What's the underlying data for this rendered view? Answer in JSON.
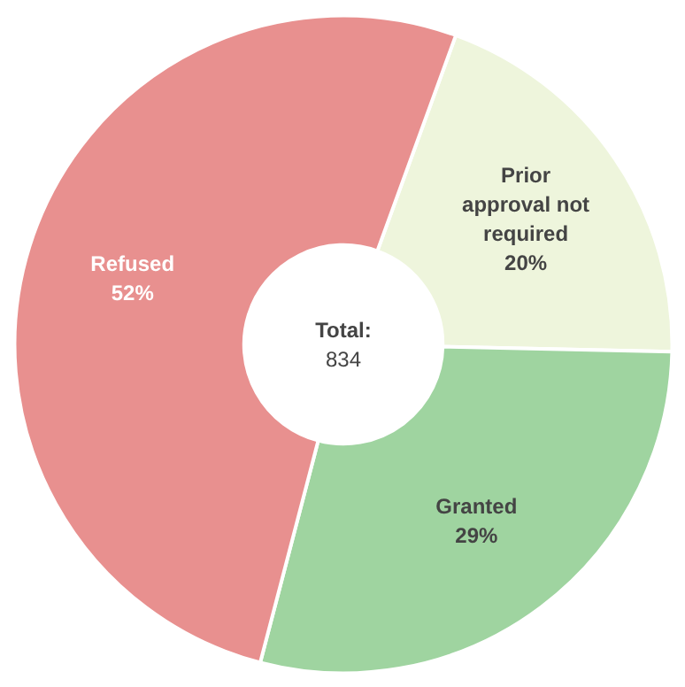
{
  "chart_data": {
    "type": "donut",
    "categories": [
      "Prior approval not required",
      "Granted",
      "Refused"
    ],
    "values": [
      20,
      29,
      52
    ],
    "colors": [
      "#eef5dc",
      "#9fd4a0",
      "#e8908f"
    ],
    "value_labels": [
      "20%",
      "29%",
      "52%"
    ],
    "annotations": [
      "Total:",
      "834"
    ]
  }
}
